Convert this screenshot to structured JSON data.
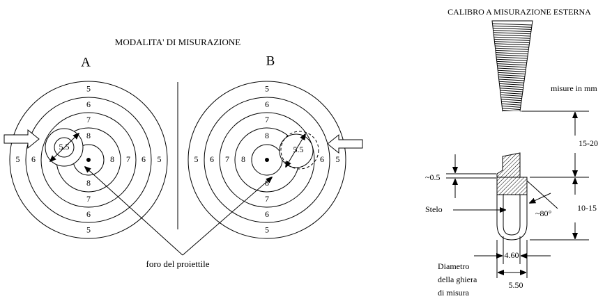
{
  "left_title": "MODALITA' DI MISURAZIONE",
  "targets": [
    {
      "label": "A",
      "ring_numbers": [
        "5",
        "6",
        "7",
        "8"
      ],
      "hole_label": "5.5"
    },
    {
      "label": "B",
      "ring_numbers": [
        "5",
        "6",
        "7",
        "8"
      ],
      "hole_label": "5.5"
    }
  ],
  "hole_caption": "foro del proiettile",
  "gauge": {
    "title": "CALIBRO A MISURAZIONE ESTERNA",
    "units_note": "misure in mm",
    "dim_upper": "15-20",
    "dim_lower": "10-15",
    "dim_step": "~0.5",
    "stem": "Stelo",
    "angle": "~80°",
    "inner_diameter": "4.60",
    "outer_diameter": "5.50",
    "diameter_caption": [
      "Diametro",
      "della ghiera",
      "di misura"
    ]
  }
}
